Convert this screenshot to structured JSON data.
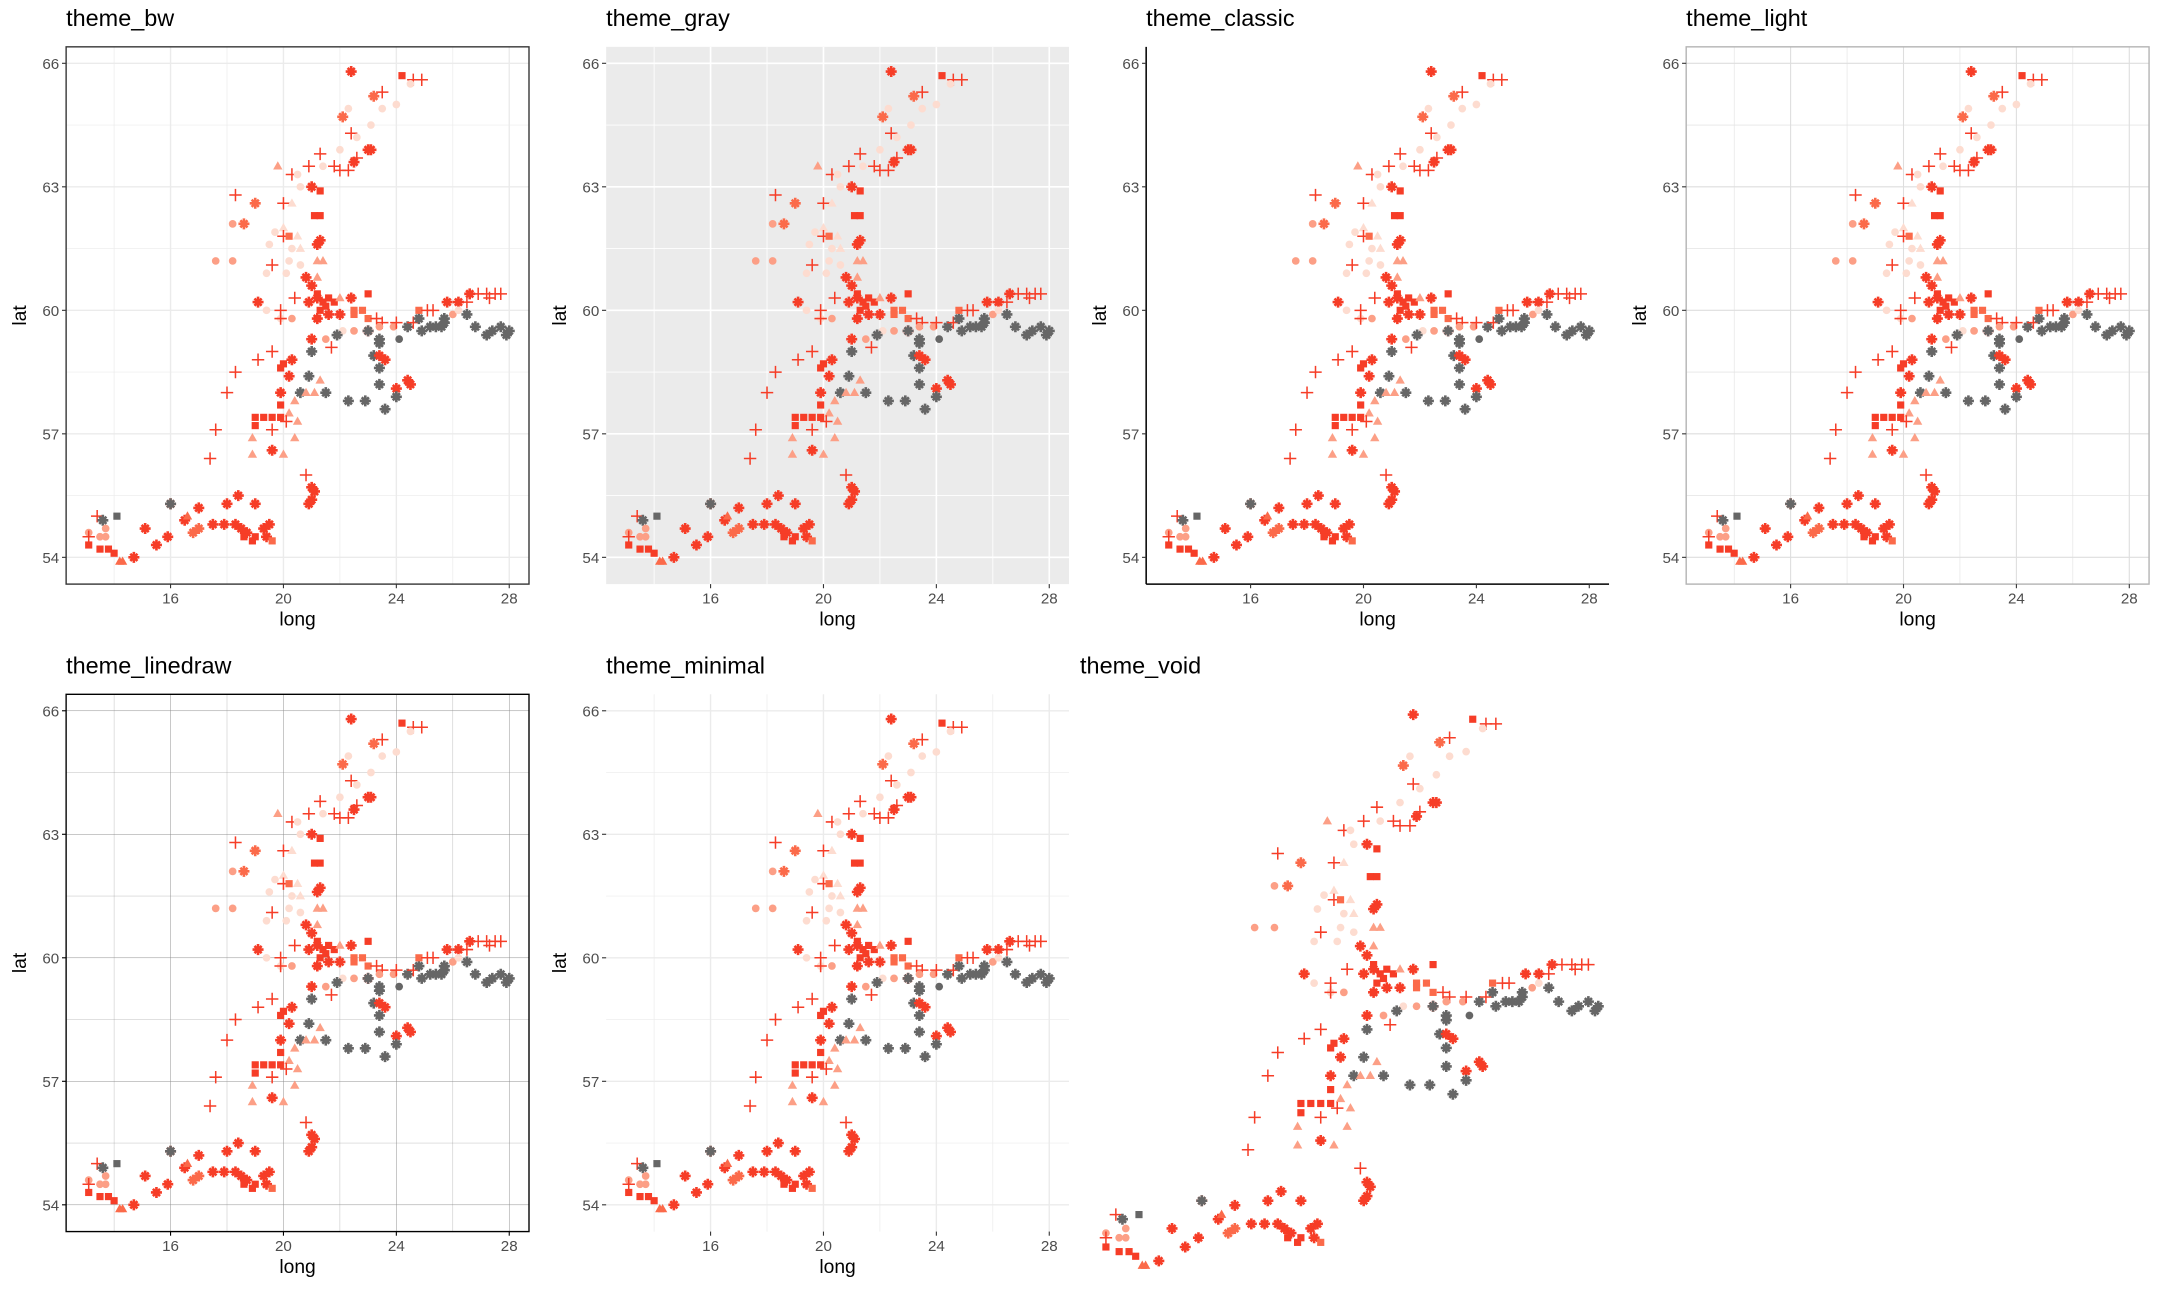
{
  "chart_data": [
    {
      "type": "scatter",
      "title": "theme_bw",
      "theme": "bw",
      "xlabel": "long",
      "ylabel": "lat"
    },
    {
      "type": "scatter",
      "title": "theme_gray",
      "theme": "gray",
      "xlabel": "long",
      "ylabel": "lat"
    },
    {
      "type": "scatter",
      "title": "theme_classic",
      "theme": "classic",
      "xlabel": "long",
      "ylabel": "lat"
    },
    {
      "type": "scatter",
      "title": "theme_light",
      "theme": "light",
      "xlabel": "long",
      "ylabel": "lat"
    },
    {
      "type": "scatter",
      "title": "theme_linedraw",
      "theme": "linedraw",
      "xlabel": "long",
      "ylabel": "lat"
    },
    {
      "type": "scatter",
      "title": "theme_minimal",
      "theme": "minimal",
      "xlabel": "long",
      "ylabel": "lat"
    },
    {
      "type": "scatter",
      "title": "theme_void",
      "theme": "void",
      "xlabel": "",
      "ylabel": ""
    }
  ],
  "axes": {
    "xlim": [
      12.3,
      28.7
    ],
    "ylim": [
      53.35,
      66.4
    ],
    "xticks": [
      16,
      20,
      24,
      28
    ],
    "yticks": [
      54,
      57,
      60,
      63,
      66
    ],
    "xminor": [
      14,
      18,
      22,
      26
    ],
    "yminor": [
      55.5,
      58.5,
      61.5,
      64.5
    ],
    "grid": true
  },
  "palette": {
    "0": "#fddcd0",
    "1": "#fc9f86",
    "2": "#fb6a4a",
    "3": "#f63d27",
    "4": "#666666"
  },
  "shapes": {
    "c": "circle",
    "t": "triangle",
    "s": "square",
    "p": "plus",
    "x": "filled-plus"
  },
  "points": [
    [
      22.4,
      65.8,
      "x",
      3
    ],
    [
      24.2,
      65.7,
      "s",
      3
    ],
    [
      24.6,
      65.6,
      "p",
      3
    ],
    [
      24.9,
      65.6,
      "p",
      3
    ],
    [
      24.5,
      65.5,
      "c",
      0
    ],
    [
      23.5,
      65.3,
      "p",
      3
    ],
    [
      23.2,
      65.2,
      "x",
      2
    ],
    [
      24.0,
      65.0,
      "c",
      0
    ],
    [
      23.5,
      64.9,
      "c",
      0
    ],
    [
      22.3,
      64.9,
      "c",
      0
    ],
    [
      22.1,
      64.7,
      "x",
      2
    ],
    [
      23.1,
      64.5,
      "c",
      0
    ],
    [
      22.4,
      64.3,
      "p",
      3
    ],
    [
      22.6,
      64.2,
      "c",
      0
    ],
    [
      23.0,
      63.9,
      "x",
      3
    ],
    [
      23.1,
      63.9,
      "x",
      3
    ],
    [
      22.0,
      63.9,
      "c",
      0
    ],
    [
      22.6,
      63.7,
      "p",
      3
    ],
    [
      22.5,
      63.6,
      "x",
      3
    ],
    [
      21.3,
      63.8,
      "p",
      3
    ],
    [
      21.4,
      63.5,
      "c",
      0
    ],
    [
      21.8,
      63.5,
      "p",
      3
    ],
    [
      22.0,
      63.4,
      "p",
      3
    ],
    [
      22.3,
      63.4,
      "p",
      3
    ],
    [
      20.9,
      63.5,
      "p",
      3
    ],
    [
      19.8,
      63.5,
      "t",
      1
    ],
    [
      20.3,
      63.3,
      "p",
      3
    ],
    [
      20.5,
      63.3,
      "c",
      0
    ],
    [
      20.6,
      63.0,
      "c",
      0
    ],
    [
      21.0,
      63.0,
      "x",
      3
    ],
    [
      21.3,
      62.9,
      "s",
      3
    ],
    [
      18.3,
      62.8,
      "p",
      3
    ],
    [
      19.0,
      62.6,
      "x",
      2
    ],
    [
      20.0,
      62.6,
      "p",
      3
    ],
    [
      20.3,
      62.6,
      "t",
      0
    ],
    [
      21.1,
      62.3,
      "s",
      3
    ],
    [
      21.3,
      62.3,
      "s",
      3
    ],
    [
      18.2,
      62.1,
      "c",
      1
    ],
    [
      18.6,
      62.1,
      "x",
      2
    ],
    [
      20.0,
      62.0,
      "t",
      0
    ],
    [
      19.7,
      61.9,
      "c",
      0
    ],
    [
      20.0,
      61.8,
      "p",
      3
    ],
    [
      20.2,
      61.8,
      "s",
      2
    ],
    [
      20.5,
      61.8,
      "t",
      0
    ],
    [
      21.3,
      61.7,
      "x",
      3
    ],
    [
      21.2,
      61.6,
      "x",
      3
    ],
    [
      19.5,
      61.6,
      "c",
      0
    ],
    [
      20.3,
      61.5,
      "c",
      0
    ],
    [
      20.6,
      61.5,
      "t",
      0
    ],
    [
      17.6,
      61.2,
      "c",
      1
    ],
    [
      18.2,
      61.2,
      "c",
      1
    ],
    [
      20.2,
      61.2,
      "c",
      0
    ],
    [
      21.2,
      61.2,
      "t",
      1
    ],
    [
      21.4,
      61.2,
      "t",
      1
    ],
    [
      19.6,
      61.1,
      "p",
      3
    ],
    [
      20.6,
      61.1,
      "c",
      0
    ],
    [
      19.4,
      60.9,
      "c",
      0
    ],
    [
      20.1,
      60.9,
      "c",
      0
    ],
    [
      20.8,
      60.8,
      "x",
      3
    ],
    [
      21.2,
      60.8,
      "t",
      1
    ],
    [
      21.0,
      60.6,
      "x",
      3
    ],
    [
      21.2,
      60.4,
      "s",
      3
    ],
    [
      21.2,
      60.3,
      "x",
      3
    ],
    [
      21.4,
      60.2,
      "s",
      3
    ],
    [
      21.6,
      60.3,
      "s",
      3
    ],
    [
      21.8,
      60.2,
      "s",
      3
    ],
    [
      22.0,
      60.3,
      "t",
      1
    ],
    [
      22.4,
      60.3,
      "x",
      3
    ],
    [
      23.0,
      60.4,
      "s",
      3
    ],
    [
      20.4,
      60.3,
      "p",
      3
    ],
    [
      20.9,
      60.2,
      "x",
      3
    ],
    [
      19.1,
      60.2,
      "x",
      3
    ],
    [
      19.4,
      60.0,
      "c",
      0
    ],
    [
      19.9,
      60.0,
      "p",
      3
    ],
    [
      19.9,
      59.8,
      "c",
      0
    ],
    [
      19.9,
      59.8,
      "p",
      3
    ],
    [
      20.3,
      59.8,
      "c",
      1
    ],
    [
      21.2,
      59.8,
      "s",
      3
    ],
    [
      21.3,
      60.0,
      "s",
      3
    ],
    [
      21.5,
      60.1,
      "s",
      3
    ],
    [
      21.2,
      59.8,
      "x",
      3
    ],
    [
      21.6,
      59.9,
      "x",
      3
    ],
    [
      22.0,
      59.9,
      "x",
      3
    ],
    [
      22.5,
      60.0,
      "s",
      2
    ],
    [
      22.5,
      59.9,
      "s",
      2
    ],
    [
      22.8,
      60.0,
      "s",
      2
    ],
    [
      23.0,
      59.8,
      "s",
      2
    ],
    [
      23.3,
      59.8,
      "p",
      3
    ],
    [
      23.5,
      59.7,
      "p",
      3
    ],
    [
      22.5,
      59.5,
      "c",
      1
    ],
    [
      22.1,
      59.5,
      "c",
      0
    ],
    [
      23.0,
      59.5,
      "x",
      3
    ],
    [
      23.0,
      59.5,
      "x",
      4
    ],
    [
      23.4,
      59.6,
      "c",
      1
    ],
    [
      23.9,
      59.6,
      "c",
      1
    ],
    [
      23.4,
      59.3,
      "x",
      4
    ],
    [
      23.4,
      59.2,
      "x",
      4
    ],
    [
      24.0,
      59.7,
      "p",
      3
    ],
    [
      24.4,
      59.6,
      "x",
      4
    ],
    [
      24.1,
      59.3,
      "c",
      4
    ],
    [
      24.6,
      59.7,
      "p",
      3
    ],
    [
      24.8,
      59.8,
      "x",
      4
    ],
    [
      24.8,
      60.0,
      "s",
      2
    ],
    [
      25.1,
      60.0,
      "p",
      3
    ],
    [
      25.3,
      60.0,
      "p",
      3
    ],
    [
      24.9,
      59.5,
      "x",
      4
    ],
    [
      25.2,
      59.6,
      "x",
      4
    ],
    [
      25.4,
      59.6,
      "x",
      4
    ],
    [
      25.6,
      59.6,
      "x",
      4
    ],
    [
      25.8,
      60.2,
      "x",
      3
    ],
    [
      25.7,
      59.8,
      "x",
      4
    ],
    [
      25.7,
      59.7,
      "x",
      4
    ],
    [
      26.2,
      60.2,
      "x",
      3
    ],
    [
      26.0,
      59.9,
      "c",
      1
    ],
    [
      26.2,
      60.0,
      "c",
      0
    ],
    [
      26.5,
      59.9,
      "x",
      4
    ],
    [
      26.5,
      60.2,
      "p",
      3
    ],
    [
      26.6,
      60.4,
      "x",
      3
    ],
    [
      26.9,
      60.4,
      "p",
      3
    ],
    [
      27.2,
      60.4,
      "p",
      3
    ],
    [
      27.3,
      60.3,
      "p",
      3
    ],
    [
      27.5,
      60.4,
      "p",
      3
    ],
    [
      27.7,
      60.4,
      "p",
      3
    ],
    [
      26.8,
      59.6,
      "x",
      4
    ],
    [
      27.2,
      59.4,
      "x",
      4
    ],
    [
      27.4,
      59.5,
      "x",
      4
    ],
    [
      27.7,
      59.6,
      "x",
      4
    ],
    [
      27.9,
      59.4,
      "x",
      4
    ],
    [
      28.0,
      59.5,
      "x",
      4
    ],
    [
      21.5,
      59.3,
      "c",
      1
    ],
    [
      21.9,
      59.4,
      "x",
      4
    ],
    [
      21.7,
      59.1,
      "p",
      3
    ],
    [
      21.0,
      59.3,
      "x",
      3
    ],
    [
      21.0,
      59.0,
      "x",
      4
    ],
    [
      23.2,
      58.9,
      "x",
      4
    ],
    [
      23.4,
      58.9,
      "x",
      3
    ],
    [
      23.6,
      58.8,
      "x",
      3
    ],
    [
      23.4,
      58.6,
      "x",
      4
    ],
    [
      19.6,
      59.0,
      "p",
      3
    ],
    [
      19.1,
      58.8,
      "p",
      3
    ],
    [
      18.3,
      58.5,
      "p",
      3
    ],
    [
      19.9,
      58.6,
      "s",
      3
    ],
    [
      20.0,
      58.7,
      "s",
      3
    ],
    [
      20.3,
      58.8,
      "x",
      3
    ],
    [
      20.2,
      58.4,
      "x",
      3
    ],
    [
      20.9,
      58.4,
      "x",
      4
    ],
    [
      21.3,
      58.3,
      "t",
      1
    ],
    [
      23.4,
      58.2,
      "x",
      4
    ],
    [
      24.4,
      58.3,
      "x",
      3
    ],
    [
      24.5,
      58.2,
      "x",
      3
    ],
    [
      24.0,
      58.1,
      "x",
      3
    ],
    [
      18.0,
      58.0,
      "p",
      3
    ],
    [
      19.9,
      58.0,
      "x",
      3
    ],
    [
      20.6,
      58.0,
      "x",
      4
    ],
    [
      20.8,
      58.0,
      "t",
      1
    ],
    [
      21.1,
      58.0,
      "t",
      1
    ],
    [
      21.5,
      58.0,
      "x",
      4
    ],
    [
      22.3,
      57.8,
      "x",
      4
    ],
    [
      22.9,
      57.8,
      "x",
      4
    ],
    [
      24.0,
      57.9,
      "x",
      4
    ],
    [
      23.6,
      57.6,
      "x",
      4
    ],
    [
      20.4,
      57.8,
      "t",
      1
    ],
    [
      20.2,
      57.5,
      "t",
      1
    ],
    [
      19.9,
      57.7,
      "s",
      3
    ],
    [
      19.0,
      57.4,
      "s",
      3
    ],
    [
      19.3,
      57.4,
      "s",
      3
    ],
    [
      19.6,
      57.4,
      "s",
      3
    ],
    [
      19.9,
      57.4,
      "s",
      3
    ],
    [
      20.1,
      57.3,
      "p",
      3
    ],
    [
      19.0,
      57.2,
      "s",
      3
    ],
    [
      20.5,
      57.3,
      "t",
      1
    ],
    [
      19.6,
      57.1,
      "p",
      3
    ],
    [
      17.6,
      57.1,
      "p",
      3
    ],
    [
      18.9,
      56.9,
      "t",
      1
    ],
    [
      20.4,
      56.9,
      "t",
      1
    ],
    [
      19.6,
      56.6,
      "x",
      3
    ],
    [
      18.9,
      56.5,
      "t",
      1
    ],
    [
      20.0,
      56.5,
      "t",
      1
    ],
    [
      17.4,
      56.4,
      "p",
      3
    ],
    [
      20.8,
      56.0,
      "p",
      3
    ],
    [
      21.0,
      55.7,
      "x",
      3
    ],
    [
      21.1,
      55.6,
      "x",
      3
    ],
    [
      21.0,
      55.4,
      "x",
      3
    ],
    [
      20.9,
      55.3,
      "x",
      3
    ],
    [
      16.0,
      55.3,
      "x",
      2
    ],
    [
      16.0,
      55.3,
      "x",
      4
    ],
    [
      18.4,
      55.5,
      "x",
      3
    ],
    [
      17.0,
      55.2,
      "x",
      3
    ],
    [
      18.0,
      55.3,
      "x",
      3
    ],
    [
      19.0,
      55.3,
      "x",
      3
    ],
    [
      16.5,
      54.9,
      "x",
      3
    ],
    [
      16.6,
      55.0,
      "t",
      2
    ],
    [
      13.4,
      55.0,
      "p",
      3
    ],
    [
      13.6,
      54.9,
      "x",
      4
    ],
    [
      14.1,
      55.0,
      "s",
      4
    ],
    [
      13.7,
      54.7,
      "c",
      1
    ],
    [
      15.1,
      54.7,
      "x",
      3
    ],
    [
      16.8,
      54.6,
      "x",
      2
    ],
    [
      17.0,
      54.7,
      "x",
      2
    ],
    [
      17.5,
      54.8,
      "x",
      3
    ],
    [
      17.9,
      54.8,
      "x",
      3
    ],
    [
      18.3,
      54.8,
      "x",
      3
    ],
    [
      18.5,
      54.7,
      "x",
      3
    ],
    [
      18.7,
      54.6,
      "x",
      3
    ],
    [
      19.0,
      54.5,
      "s",
      3
    ],
    [
      19.3,
      54.7,
      "x",
      3
    ],
    [
      19.5,
      54.8,
      "x",
      3
    ],
    [
      19.4,
      54.5,
      "x",
      3
    ],
    [
      19.6,
      54.4,
      "s",
      2
    ],
    [
      18.6,
      54.5,
      "s",
      3
    ],
    [
      18.9,
      54.4,
      "s",
      3
    ],
    [
      13.1,
      54.6,
      "c",
      1
    ],
    [
      13.5,
      54.5,
      "c",
      1
    ],
    [
      13.7,
      54.5,
      "c",
      1
    ],
    [
      13.1,
      54.5,
      "p",
      3
    ],
    [
      13.1,
      54.3,
      "s",
      3
    ],
    [
      13.5,
      54.2,
      "s",
      3
    ],
    [
      13.8,
      54.2,
      "s",
      3
    ],
    [
      14.0,
      54.1,
      "s",
      3
    ],
    [
      14.2,
      53.9,
      "t",
      2
    ],
    [
      14.3,
      53.9,
      "t",
      2
    ],
    [
      14.7,
      54.0,
      "x",
      3
    ],
    [
      15.5,
      54.3,
      "x",
      3
    ],
    [
      15.9,
      54.5,
      "x",
      3
    ]
  ]
}
